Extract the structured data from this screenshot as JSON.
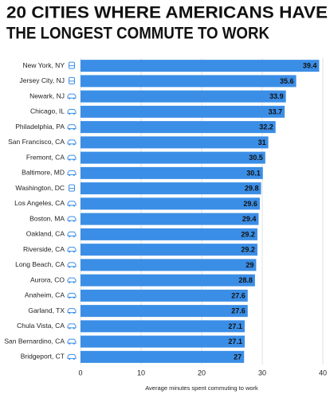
{
  "chart_data": {
    "type": "barh",
    "title": [
      "20 CITIES WHERE AMERICANS HAVE",
      "THE LONGEST COMMUTE TO WORK"
    ],
    "categories": [
      "New York, NY",
      "Jersey City, NJ",
      "Newark, NJ",
      "Chicago, IL",
      "Philadelphia, PA",
      "San Francisco, CA",
      "Fremont, CA",
      "Baltimore, MD",
      "Washington, DC",
      "Los Angeles, CA",
      "Boston, MA",
      "Oakland, CA",
      "Riverside, CA",
      "Long Beach, CA",
      "Aurora, CO",
      "Anaheim, CA",
      "Garland, TX",
      "Chula Vista, CA",
      "San Bernardino, CA",
      "Bridgeport, CT"
    ],
    "icons": [
      "train",
      "train",
      "car",
      "car",
      "car",
      "car",
      "car",
      "car",
      "train",
      "car",
      "car",
      "car",
      "car",
      "car",
      "car",
      "car",
      "car",
      "car",
      "car",
      "car"
    ],
    "values": [
      39.4,
      35.6,
      33.9,
      33.7,
      32.2,
      31,
      30.5,
      30.1,
      29.8,
      29.6,
      29.4,
      29.2,
      29.2,
      29,
      28.8,
      27.6,
      27.6,
      27.1,
      27.1,
      27
    ],
    "color": "#3b8ee6",
    "xlim": [
      0,
      40
    ],
    "xticks": [
      0,
      10,
      20,
      30,
      40
    ],
    "grid": true,
    "xlabel": "Average minutes spent commuting to work"
  }
}
